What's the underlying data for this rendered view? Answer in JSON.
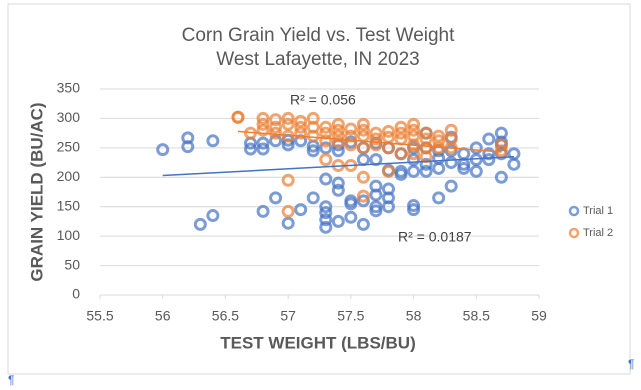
{
  "chart_data": {
    "type": "scatter",
    "title": "Corn Grain Yield vs. Test Weight",
    "subtitle": "West Lafayette, IN 2023",
    "x_label": "TEST WEIGHT (LBS/BU)",
    "y_label": "GRAIN YIELD (BU/AC)",
    "xlim": [
      55.5,
      59
    ],
    "xticks": [
      55.5,
      56,
      56.5,
      57,
      57.5,
      58,
      58.5,
      59
    ],
    "ylim": [
      0,
      350
    ],
    "yticks": [
      0,
      50,
      100,
      150,
      200,
      250,
      300,
      350
    ],
    "grid": true,
    "legend": "right",
    "series": [
      {
        "name": "Trial 1",
        "color": "#4472c4",
        "x": [
          56.0,
          56.2,
          56.2,
          56.3,
          56.4,
          56.4,
          56.7,
          56.7,
          56.8,
          56.8,
          56.8,
          56.9,
          56.9,
          57.0,
          57.0,
          57.0,
          57.1,
          57.1,
          57.2,
          57.2,
          57.2,
          57.3,
          57.3,
          57.3,
          57.3,
          57.3,
          57.3,
          57.4,
          57.4,
          57.4,
          57.4,
          57.4,
          57.5,
          57.5,
          57.5,
          57.5,
          57.6,
          57.6,
          57.6,
          57.6,
          57.7,
          57.7,
          57.7,
          57.7,
          57.7,
          57.7,
          57.8,
          57.8,
          57.8,
          57.8,
          57.8,
          57.9,
          57.9,
          57.9,
          58.0,
          58.0,
          58.0,
          58.0,
          58.0,
          58.1,
          58.1,
          58.1,
          58.1,
          58.2,
          58.2,
          58.2,
          58.2,
          58.3,
          58.3,
          58.3,
          58.3,
          58.4,
          58.4,
          58.4,
          58.5,
          58.5,
          58.5,
          58.6,
          58.6,
          58.6,
          58.7,
          58.7,
          58.7,
          58.7,
          58.7,
          58.8,
          58.8
        ],
        "values": [
          247,
          267,
          252,
          120,
          262,
          135,
          258,
          248,
          258,
          248,
          142,
          165,
          262,
          122,
          263,
          255,
          145,
          262,
          253,
          245,
          165,
          150,
          140,
          128,
          115,
          250,
          197,
          190,
          178,
          125,
          255,
          245,
          260,
          160,
          132,
          155,
          250,
          230,
          120,
          160,
          230,
          185,
          170,
          150,
          143,
          258,
          250,
          180,
          165,
          212,
          150,
          240,
          210,
          205,
          250,
          230,
          210,
          152,
          145,
          275,
          250,
          222,
          210,
          245,
          232,
          215,
          165,
          245,
          225,
          185,
          268,
          240,
          222,
          215,
          250,
          230,
          210,
          265,
          230,
          240,
          275,
          260,
          240,
          200,
          255,
          240,
          222
        ],
        "trendline": {
          "x": [
            56,
            58.8
          ],
          "values": [
            203,
            235
          ]
        }
      },
      {
        "name": "Trial 2",
        "color": "#ed7d31",
        "x": [
          56.6,
          56.6,
          56.7,
          56.8,
          56.8,
          56.8,
          56.9,
          56.9,
          56.9,
          57.0,
          57.0,
          57.0,
          57.0,
          57.0,
          57.1,
          57.1,
          57.1,
          57.2,
          57.2,
          57.2,
          57.3,
          57.3,
          57.3,
          57.3,
          57.4,
          57.4,
          57.4,
          57.4,
          57.4,
          57.5,
          57.5,
          57.5,
          57.5,
          57.6,
          57.6,
          57.6,
          57.6,
          57.6,
          57.6,
          57.7,
          57.7,
          57.7,
          57.8,
          57.8,
          57.8,
          57.8,
          57.9,
          57.9,
          57.9,
          57.9,
          58.0,
          58.0,
          58.0,
          58.0,
          58.0,
          58.1,
          58.1,
          58.1,
          58.1,
          58.2,
          58.2,
          58.2,
          58.3,
          58.3,
          58.3,
          58.7,
          58.7
        ],
        "values": [
          302,
          302,
          275,
          300,
          290,
          280,
          298,
          285,
          275,
          300,
          290,
          270,
          195,
          142,
          295,
          285,
          275,
          300,
          285,
          270,
          285,
          275,
          262,
          230,
          290,
          280,
          270,
          260,
          220,
          282,
          270,
          255,
          220,
          290,
          280,
          270,
          250,
          200,
          168,
          275,
          265,
          255,
          278,
          268,
          250,
          210,
          285,
          275,
          265,
          240,
          290,
          280,
          270,
          255,
          240,
          275,
          265,
          250,
          235,
          270,
          262,
          250,
          280,
          265,
          250,
          255,
          245
        ],
        "trendline": {
          "x": [
            56.6,
            58.7
          ],
          "values": [
            278,
            243
          ]
        }
      }
    ],
    "annotations": [
      "R² = 0.056",
      "R² = 0.0187"
    ]
  },
  "paragraph_marks": [
    "¶",
    "¶"
  ]
}
